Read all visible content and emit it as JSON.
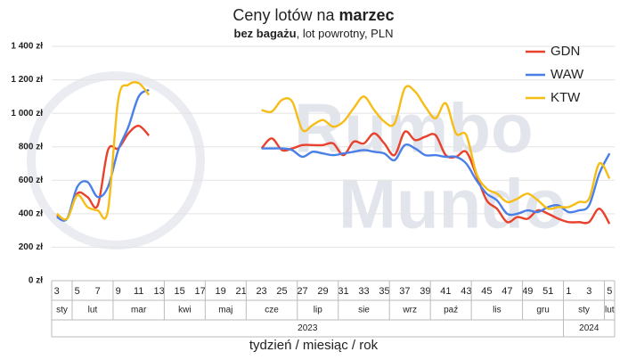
{
  "chart_data": {
    "type": "line",
    "title": "Ceny lotów na",
    "title_emphasis": "marzec",
    "subtitle_emphasis": "bez bagażu",
    "subtitle": ", lot powrotny, PLN",
    "x_label": "tydzień / miesiąc / rok",
    "watermark": [
      "Rumbo",
      "Mundo"
    ],
    "categories": [
      "3",
      null,
      "5",
      null,
      "7",
      null,
      "9",
      null,
      "11",
      null,
      "13",
      null,
      "15",
      null,
      "17",
      null,
      "19",
      null,
      "21",
      null,
      "23",
      null,
      "25",
      null,
      "27",
      null,
      "29",
      null,
      "31",
      null,
      "33",
      null,
      "35",
      null,
      "37",
      null,
      "39",
      null,
      "41",
      null,
      "43",
      null,
      "45",
      null,
      "47",
      null,
      "49",
      null,
      "51",
      null,
      "1",
      null,
      "3",
      null,
      "5"
    ],
    "months": [
      {
        "label": "sty",
        "weeks": 2
      },
      {
        "label": "lut",
        "weeks": 4
      },
      {
        "label": "mar",
        "weeks": 5
      },
      {
        "label": "kwi",
        "weeks": 4
      },
      {
        "label": "maj",
        "weeks": 4
      },
      {
        "label": "cze",
        "weeks": 5
      },
      {
        "label": "lip",
        "weeks": 4
      },
      {
        "label": "sie",
        "weeks": 5
      },
      {
        "label": "wrz",
        "weeks": 4
      },
      {
        "label": "paź",
        "weeks": 4
      },
      {
        "label": "lis",
        "weeks": 5
      },
      {
        "label": "gru",
        "weeks": 4
      },
      {
        "label": "sty",
        "weeks": 4
      },
      {
        "label": "lut",
        "weeks": 1
      }
    ],
    "years": [
      {
        "label": "2023",
        "weeks": 50
      },
      {
        "label": "2024",
        "weeks": 5
      }
    ],
    "series": [
      {
        "name": "GDN",
        "color": "#e8412c",
        "values": [
          390,
          370,
          520,
          500,
          450,
          780,
          790,
          880,
          925,
          867,
          null,
          null,
          null,
          null,
          null,
          null,
          null,
          null,
          null,
          null,
          790,
          850,
          780,
          790,
          810,
          810,
          810,
          820,
          750,
          830,
          820,
          880,
          820,
          750,
          890,
          840,
          860,
          870,
          750,
          740,
          770,
          630,
          480,
          430,
          350,
          380,
          370,
          420,
          400,
          370,
          350,
          350,
          350,
          430,
          340
        ]
      },
      {
        "name": "WAW",
        "color": "#4a7fe8",
        "values": [
          380,
          370,
          560,
          590,
          500,
          560,
          780,
          920,
          1100,
          1140,
          null,
          null,
          null,
          null,
          null,
          null,
          null,
          null,
          null,
          null,
          790,
          790,
          790,
          780,
          740,
          770,
          760,
          750,
          760,
          770,
          780,
          770,
          760,
          720,
          810,
          790,
          750,
          750,
          740,
          740,
          700,
          600,
          520,
          480,
          400,
          400,
          420,
          410,
          440,
          450,
          410,
          420,
          450,
          640,
          760
        ]
      },
      {
        "name": "KTW",
        "color": "#f6bd16",
        "values": [
          400,
          370,
          510,
          440,
          420,
          420,
          1080,
          1170,
          1180,
          1110,
          null,
          null,
          null,
          null,
          null,
          null,
          null,
          null,
          null,
          null,
          1020,
          1010,
          1080,
          1070,
          900,
          930,
          960,
          920,
          950,
          1030,
          1100,
          1020,
          950,
          940,
          1150,
          1130,
          1040,
          970,
          1060,
          880,
          870,
          640,
          550,
          520,
          470,
          490,
          520,
          480,
          430,
          440,
          440,
          470,
          490,
          700,
          610
        ]
      }
    ],
    "ylim": [
      0,
      1400
    ],
    "yticks": [
      {
        "value": 0,
        "label": "0 zł"
      },
      {
        "value": 200,
        "label": "200 zł"
      },
      {
        "value": 400,
        "label": "400 zł"
      },
      {
        "value": 600,
        "label": "600 zł"
      },
      {
        "value": 800,
        "label": "800 zł"
      },
      {
        "value": 1000,
        "label": "1 000 zł"
      },
      {
        "value": 1200,
        "label": "1 200 zł"
      },
      {
        "value": 1400,
        "label": "1 400 zł"
      }
    ],
    "grid": true,
    "legend": "top-right"
  }
}
